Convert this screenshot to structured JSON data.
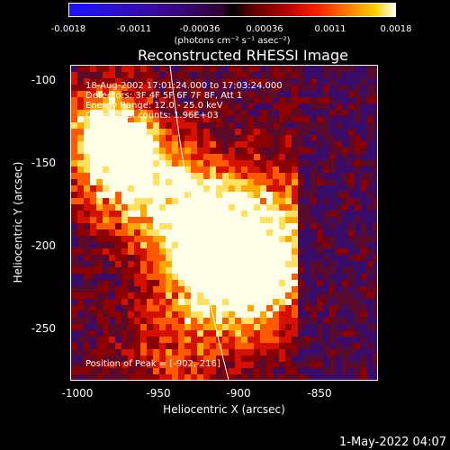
{
  "colorbar": {
    "ticks": [
      "-0.0018",
      "-0.0011",
      "-0.00036",
      "0.00036",
      "0.0011",
      "0.0018"
    ],
    "units": "(photons cm⁻² s⁻¹ asec⁻²)"
  },
  "title": "Reconstructed RHESSI Image",
  "info": {
    "line1": "18-Aug-2002 17:01:24.000 to 17:03:24.000",
    "line2": "Detectors: 3F 4F 5F 6F 7F 8F, Att 1",
    "line3": "Energy Range: 12.0 - 25.0 keV",
    "line4": "Clean     Total counts: 1.96E+03"
  },
  "peak": "Position of Peak = [-902,-216]",
  "axes": {
    "x_label": "Heliocentric X (arcsec)",
    "y_label": "Heliocentric Y (arcsec)",
    "x_ticks": [
      "-1000",
      "-950",
      "-900",
      "-850"
    ],
    "y_ticks": [
      "-100",
      "-150",
      "-200",
      "-250"
    ]
  },
  "timestamp": "1-May-2022 04:07"
}
